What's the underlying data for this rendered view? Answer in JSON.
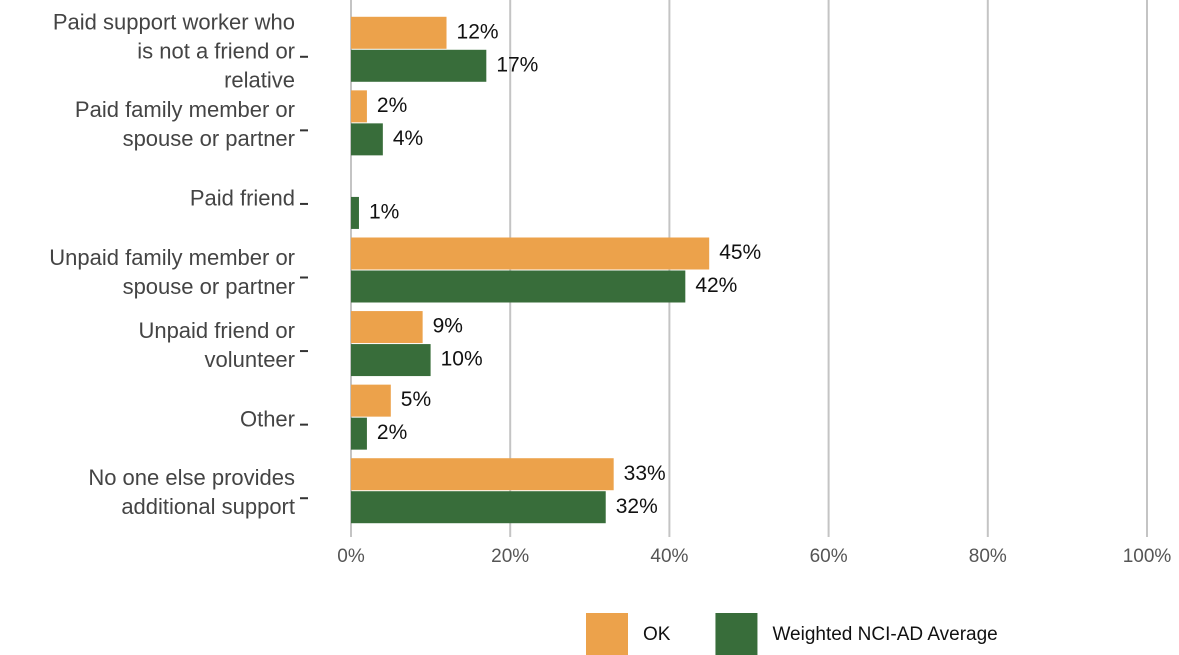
{
  "chart_data": {
    "type": "bar",
    "orientation": "horizontal",
    "categories": [
      "Paid support worker who\nis not a friend or\nrelative",
      "Paid family member or\nspouse or partner",
      "Paid friend",
      "Unpaid family member or\nspouse or partner",
      "Unpaid friend or\nvolunteer",
      "Other",
      "No one else provides\nadditional support"
    ],
    "series": [
      {
        "name": "OK",
        "color": "#eca24b",
        "values": [
          12,
          2,
          null,
          45,
          9,
          5,
          33
        ],
        "value_labels": [
          "12%",
          "2%",
          null,
          "45%",
          "9%",
          "5%",
          "33%"
        ]
      },
      {
        "name": "Weighted NCI-AD Average",
        "color": "#386d3a",
        "values": [
          17,
          4,
          1,
          42,
          10,
          2,
          32
        ],
        "value_labels": [
          "17%",
          "4%",
          "1%",
          "42%",
          "10%",
          "2%",
          "32%"
        ]
      }
    ],
    "xlim": [
      0,
      100
    ],
    "xticks": [
      {
        "value": 0,
        "label": "0%"
      },
      {
        "value": 20,
        "label": "20%"
      },
      {
        "value": 40,
        "label": "40%"
      },
      {
        "value": 60,
        "label": "60%"
      },
      {
        "value": 80,
        "label": "80%"
      },
      {
        "value": 100,
        "label": "100%"
      }
    ],
    "grid": true,
    "legend": "bottom"
  }
}
